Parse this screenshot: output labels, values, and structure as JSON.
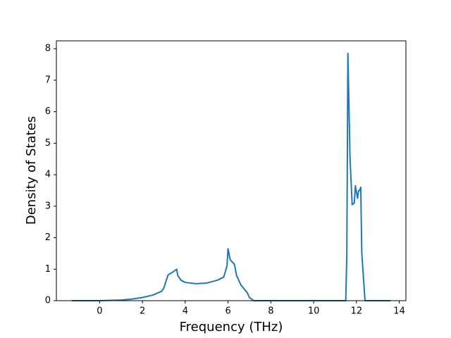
{
  "chart_data": {
    "type": "line",
    "x_label": "Frequency (THz)",
    "y_label": "Density of States",
    "x": [
      -1.3,
      0,
      1,
      1.5,
      2,
      2.5,
      2.9,
      3.0,
      3.2,
      3.4,
      3.6,
      3.65,
      3.8,
      4.0,
      4.5,
      5.0,
      5.5,
      5.8,
      5.95,
      6.0,
      6.1,
      6.3,
      6.4,
      6.6,
      6.9,
      7.0,
      7.2,
      11.5,
      11.55,
      11.6,
      11.7,
      11.8,
      11.9,
      11.95,
      12.05,
      12.1,
      12.15,
      12.2,
      12.25,
      12.35,
      12.4,
      13.6
    ],
    "series": [
      {
        "color": "#1f77b4",
        "values": [
          0,
          0,
          0.02,
          0.05,
          0.1,
          0.18,
          0.3,
          0.4,
          0.82,
          0.9,
          1.0,
          0.8,
          0.65,
          0.58,
          0.54,
          0.56,
          0.65,
          0.75,
          1.1,
          1.65,
          1.3,
          1.15,
          0.8,
          0.5,
          0.25,
          0.1,
          0,
          0,
          1.5,
          7.85,
          4.5,
          3.05,
          3.1,
          3.65,
          3.25,
          3.5,
          3.5,
          3.6,
          1.5,
          0.5,
          0,
          0
        ]
      }
    ],
    "xlim": [
      -2.02,
      14.31
    ],
    "ylim": [
      0,
      8.25
    ],
    "xticks": [
      0,
      2,
      4,
      6,
      8,
      10,
      12,
      14
    ],
    "yticks": [
      0,
      1,
      2,
      3,
      4,
      5,
      6,
      7,
      8
    ]
  }
}
